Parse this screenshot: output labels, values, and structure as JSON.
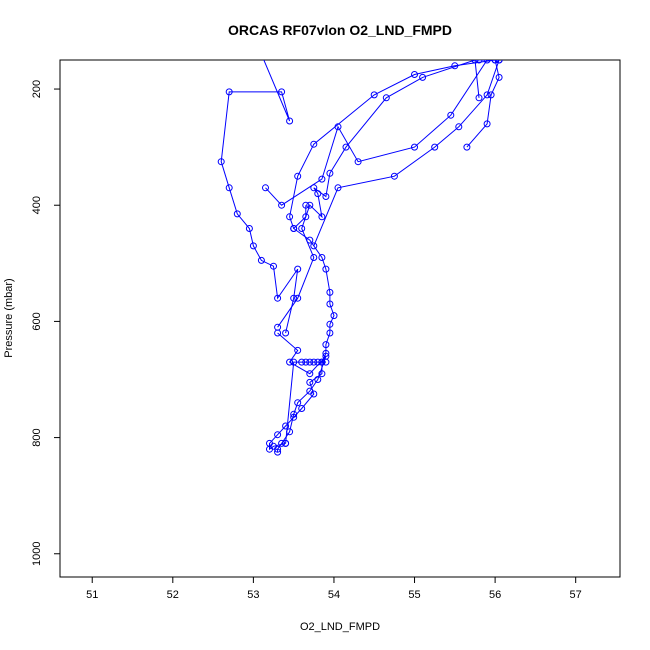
{
  "chart_data": {
    "type": "line",
    "title": "ORCAS RF07vlon O2_LND_FMPD",
    "xlabel": "O2_LND_FMPD",
    "ylabel": "Pressure (mbar)",
    "xlim": [
      50.6,
      57.55
    ],
    "ylim": [
      1040,
      150
    ],
    "y_reversed": true,
    "xticks": [
      51,
      52,
      53,
      54,
      55,
      56,
      57
    ],
    "yticks": [
      200,
      400,
      600,
      800,
      1000
    ],
    "grid": false,
    "legend": "none",
    "line_color": "#0000ff",
    "marker": "open-circle",
    "series": [
      {
        "x": [
          53.65,
          53.65,
          53.5,
          53.7,
          53.85,
          53.9,
          53.95,
          53.95,
          54.0,
          53.95,
          53.95,
          53.9,
          53.9,
          53.85,
          53.85,
          53.7,
          53.75,
          53.6,
          53.5,
          53.4,
          53.3,
          53.2,
          53.2,
          53.25,
          53.4
        ],
        "y": [
          400,
          420,
          440,
          460,
          490,
          510,
          550,
          570,
          590,
          605,
          620,
          640,
          655,
          670,
          690,
          705,
          725,
          750,
          765,
          780,
          795,
          810,
          820,
          815,
          810
        ]
      },
      {
        "x": [
          53.3,
          53.55,
          53.45,
          53.7,
          53.9,
          53.8,
          53.7,
          53.55,
          53.5,
          53.45,
          53.35,
          53.3,
          53.3
        ],
        "y": [
          620,
          650,
          670,
          690,
          660,
          700,
          720,
          740,
          760,
          790,
          810,
          820,
          825
        ]
      },
      {
        "x": [
          53.4,
          53.5,
          53.6,
          53.65,
          53.7,
          53.75,
          53.8,
          53.85,
          53.9
        ],
        "y": [
          810,
          670,
          670,
          670,
          670,
          670,
          670,
          670,
          670
        ]
      },
      {
        "x": [
          53.4,
          53.5,
          53.55,
          53.3,
          53.25,
          53.1,
          53.0,
          52.95,
          52.8,
          52.7,
          52.6,
          52.7,
          53.35,
          53.45,
          53.1
        ],
        "y": [
          620,
          560,
          510,
          560,
          505,
          495,
          470,
          440,
          415,
          370,
          325,
          205,
          205,
          255,
          140
        ]
      },
      {
        "x": [
          53.3,
          53.55,
          53.75,
          53.6,
          53.7,
          53.85,
          53.8,
          53.75,
          53.9,
          53.95,
          54.15,
          54.65,
          55.1,
          55.75,
          55.8,
          56.0
        ],
        "y": [
          610,
          560,
          490,
          440,
          400,
          420,
          380,
          370,
          385,
          345,
          300,
          215,
          180,
          150,
          150,
          150
        ]
      },
      {
        "x": [
          53.5,
          53.45,
          53.55,
          53.75,
          54.5,
          55.0,
          55.5,
          56.0,
          56.05,
          55.95,
          55.9,
          55.65
        ],
        "y": [
          440,
          420,
          350,
          295,
          210,
          175,
          160,
          150,
          180,
          210,
          260,
          300
        ]
      },
      {
        "x": [
          53.75,
          54.05,
          54.75,
          55.25,
          55.55,
          55.9,
          56.05,
          55.75,
          55.8
        ],
        "y": [
          470,
          370,
          350,
          300,
          265,
          210,
          150,
          150,
          215
        ]
      },
      {
        "x": [
          53.15,
          53.35,
          53.85,
          54.05,
          54.3,
          55.0,
          55.45,
          55.9,
          56.05
        ],
        "y": [
          370,
          400,
          355,
          265,
          325,
          300,
          245,
          150,
          150
        ]
      }
    ]
  }
}
